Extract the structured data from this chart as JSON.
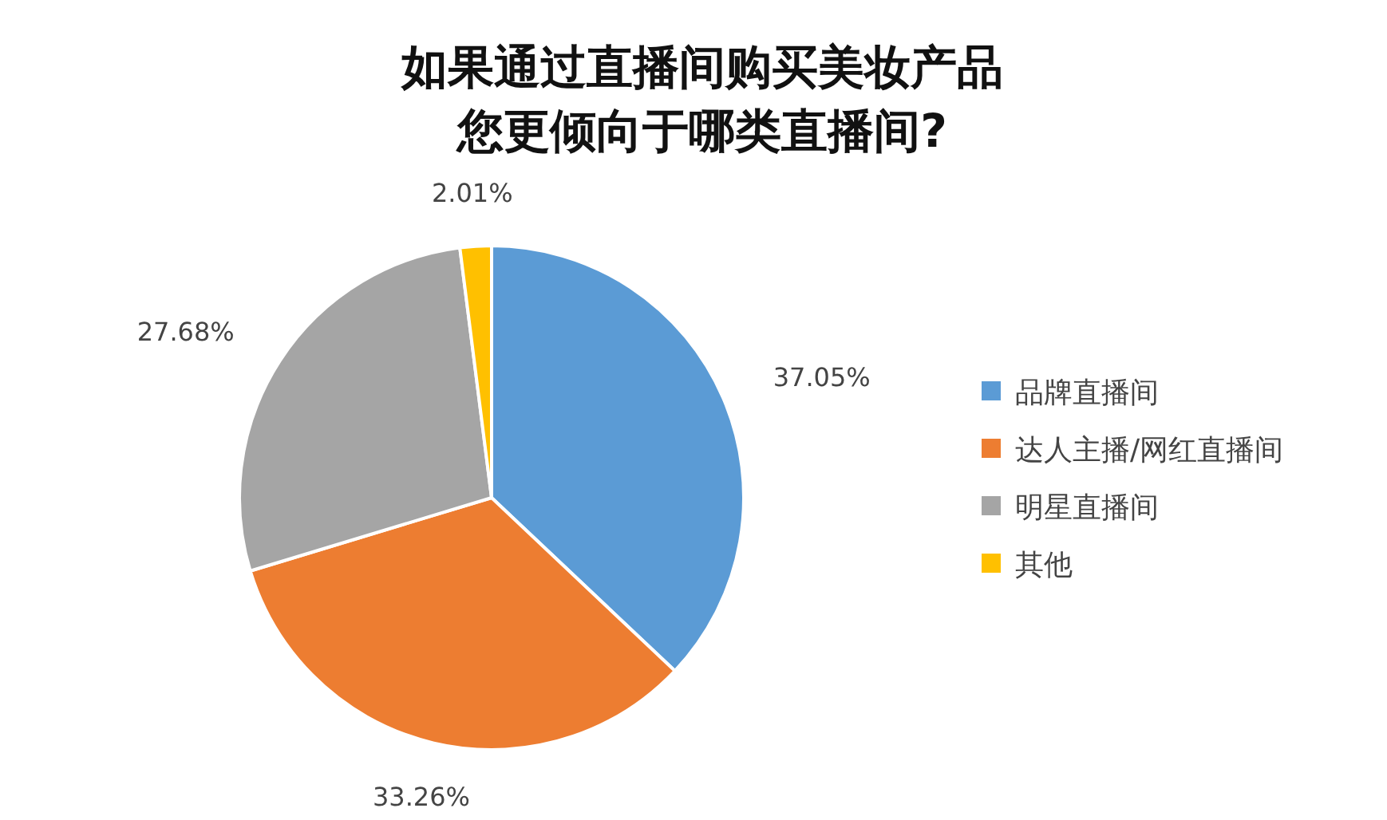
{
  "chart_data": {
    "type": "pie",
    "title": "如果通过直播间购买美妆产品您更倾向于哪类直播间?",
    "categories": [
      "品牌直播间",
      "达人主播/网红直播间",
      "明星直播间",
      "其他"
    ],
    "values": [
      37.05,
      33.26,
      27.68,
      2.01
    ],
    "value_labels": [
      "37.05%",
      "33.26%",
      "27.68%",
      "2.01%"
    ],
    "colors": [
      "#5b9bd5",
      "#ed7d31",
      "#a5a5a5",
      "#ffc000"
    ],
    "legend": "right"
  }
}
